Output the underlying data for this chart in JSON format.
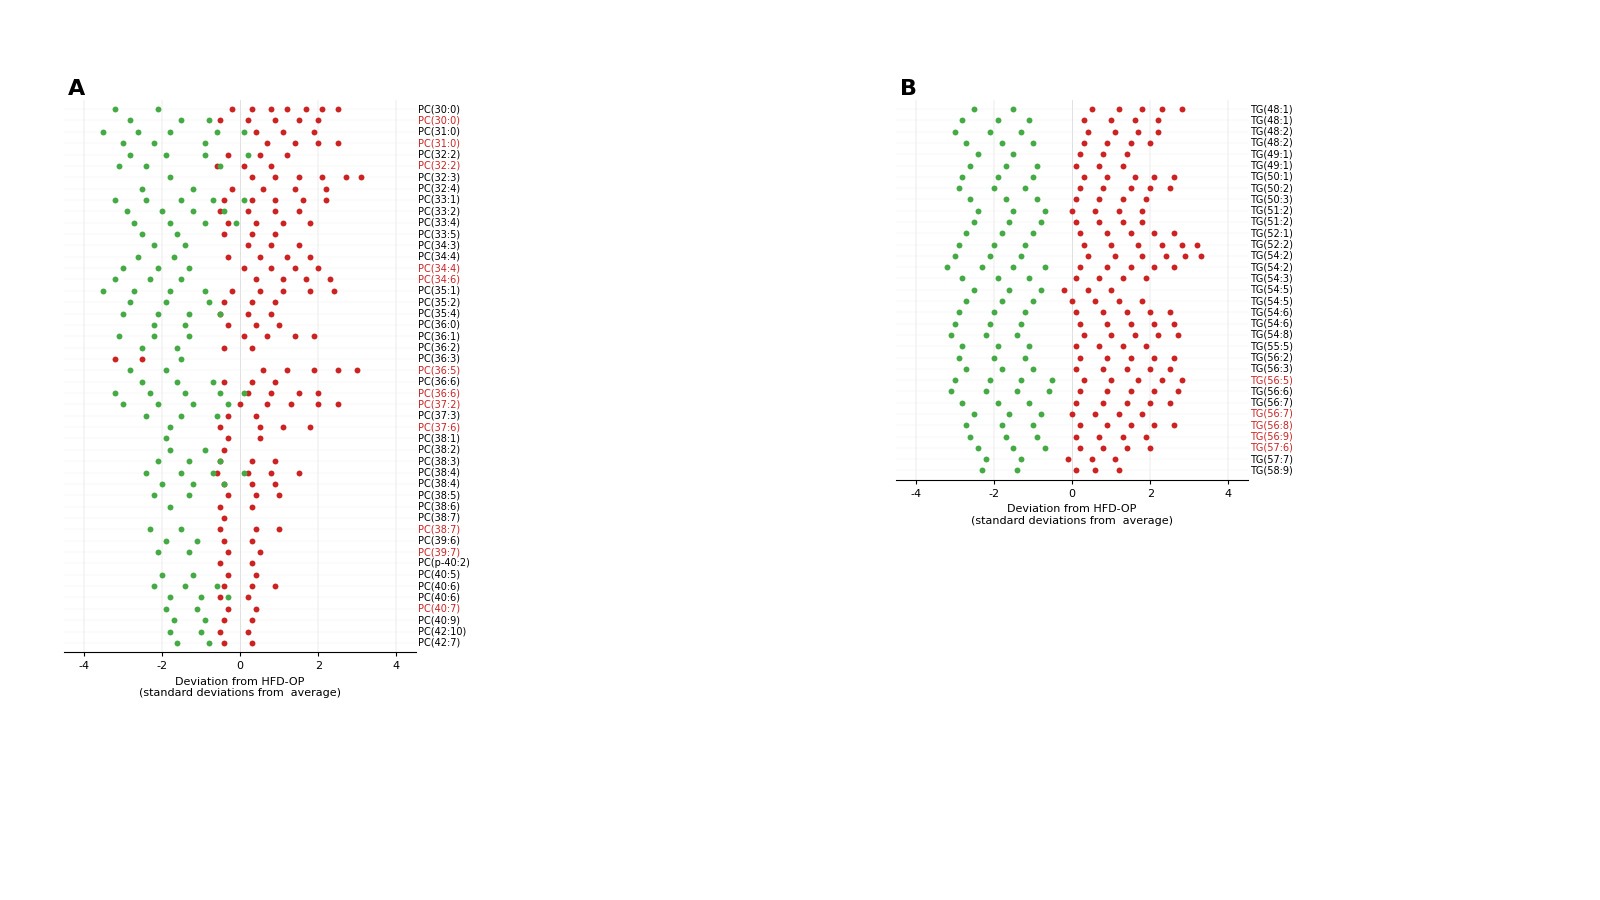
{
  "panel_A_label": "A",
  "panel_B_label": "B",
  "pc_labels": [
    "PC(30:0)",
    "PC(30:0)",
    "PC(31:0)",
    "PC(31:0)",
    "PC(32:2)",
    "PC(32:2)",
    "PC(32:3)",
    "PC(32:4)",
    "PC(33:1)",
    "PC(33:2)",
    "PC(33:4)",
    "PC(33:5)",
    "PC(34:3)",
    "PC(34:4)",
    "PC(34:4)",
    "PC(34:6)",
    "PC(35:1)",
    "PC(35:2)",
    "PC(35:4)",
    "PC(36:0)",
    "PC(36:1)",
    "PC(36:2)",
    "PC(36:3)",
    "PC(36:5)",
    "PC(36:6)",
    "PC(36:6)",
    "PC(37:2)",
    "PC(37:3)",
    "PC(37:6)",
    "PC(38:1)",
    "PC(38:2)",
    "PC(38:3)",
    "PC(38:4)",
    "PC(38:4)",
    "PC(38:5)",
    "PC(38:6)",
    "PC(38:7)",
    "PC(38:7)",
    "PC(39:6)",
    "PC(39:7)",
    "PC(p-40:2)",
    "PC(40:5)",
    "PC(40:6)",
    "PC(40:6)",
    "PC(40:7)",
    "PC(40:9)",
    "PC(42:10)",
    "PC(42:7)"
  ],
  "pc_label_red": [
    false,
    true,
    false,
    true,
    false,
    true,
    false,
    false,
    false,
    false,
    false,
    false,
    false,
    false,
    true,
    true,
    false,
    false,
    false,
    false,
    false,
    false,
    false,
    true,
    false,
    true,
    true,
    false,
    true,
    false,
    false,
    false,
    false,
    false,
    false,
    false,
    false,
    true,
    false,
    true,
    false,
    false,
    false,
    false,
    true,
    false,
    false,
    false
  ],
  "pc_rows": [
    {
      "r": [
        -0.2,
        0.3,
        0.8,
        1.2,
        1.7,
        2.1,
        2.5
      ],
      "g": [
        -3.2,
        -2.1
      ]
    },
    {
      "r": [
        -0.5,
        0.2,
        0.9,
        1.5,
        2.0
      ],
      "g": [
        -2.8,
        -1.5,
        -0.8
      ]
    },
    {
      "r": [
        0.4,
        1.1,
        1.9
      ],
      "g": [
        -3.5,
        -2.6,
        -1.8,
        -0.6,
        0.1
      ]
    },
    {
      "r": [
        0.7,
        1.4,
        2.0,
        2.5
      ],
      "g": [
        -3.0,
        -2.2,
        -0.9
      ]
    },
    {
      "r": [
        -0.3,
        0.5,
        1.2
      ],
      "g": [
        -2.8,
        -1.9,
        -0.9,
        0.2
      ]
    },
    {
      "r": [
        -0.6,
        0.1,
        0.8
      ],
      "g": [
        -3.1,
        -2.4,
        -0.5
      ]
    },
    {
      "r": [
        0.3,
        0.9,
        1.5,
        2.1,
        2.7,
        3.1
      ],
      "g": [
        -1.8
      ]
    },
    {
      "r": [
        -0.2,
        0.6,
        1.4,
        2.2
      ],
      "g": [
        -2.5,
        -1.2
      ]
    },
    {
      "r": [
        -0.4,
        0.3,
        0.9,
        1.6,
        2.2
      ],
      "g": [
        -3.2,
        -2.4,
        -1.5,
        -0.7,
        0.1
      ]
    },
    {
      "r": [
        -0.5,
        0.2,
        0.9,
        1.5
      ],
      "g": [
        -2.9,
        -2.0,
        -1.2,
        -0.4
      ]
    },
    {
      "r": [
        -0.3,
        0.4,
        1.1,
        1.8
      ],
      "g": [
        -2.7,
        -1.8,
        -0.9,
        -0.1
      ]
    },
    {
      "r": [
        -0.4,
        0.3,
        0.9
      ],
      "g": [
        -2.5,
        -1.6
      ]
    },
    {
      "r": [
        0.2,
        0.8,
        1.5
      ],
      "g": [
        -2.2,
        -1.4
      ]
    },
    {
      "r": [
        -0.3,
        0.5,
        1.2,
        1.8
      ],
      "g": [
        -2.6,
        -1.7
      ]
    },
    {
      "r": [
        0.1,
        0.8,
        1.4,
        2.0
      ],
      "g": [
        -3.0,
        -2.1,
        -1.3
      ]
    },
    {
      "r": [
        0.4,
        1.1,
        1.7,
        2.3
      ],
      "g": [
        -3.2,
        -2.3,
        -1.5
      ]
    },
    {
      "r": [
        -0.2,
        0.5,
        1.1,
        1.8,
        2.4
      ],
      "g": [
        -3.5,
        -2.7,
        -1.8,
        -0.9
      ]
    },
    {
      "r": [
        -0.4,
        0.3,
        0.9
      ],
      "g": [
        -2.8,
        -1.9,
        -0.8
      ]
    },
    {
      "r": [
        -0.5,
        0.2,
        0.8
      ],
      "g": [
        -3.0,
        -2.1,
        -1.3,
        -0.5
      ]
    },
    {
      "r": [
        -0.3,
        0.4,
        1.0
      ],
      "g": [
        -2.2,
        -1.4
      ]
    },
    {
      "r": [
        0.1,
        0.7,
        1.4,
        1.9
      ],
      "g": [
        -3.1,
        -2.2,
        -1.3
      ]
    },
    {
      "r": [
        -0.4,
        0.3
      ],
      "g": [
        -2.5,
        -1.6
      ]
    },
    {
      "r": [
        -3.2,
        -2.5
      ],
      "g": [
        -1.5
      ]
    },
    {
      "r": [
        0.6,
        1.2,
        1.9,
        2.5,
        3.0
      ],
      "g": [
        -2.8,
        -1.9
      ]
    },
    {
      "r": [
        -0.4,
        0.3,
        0.9
      ],
      "g": [
        -2.5,
        -1.6,
        -0.7
      ]
    },
    {
      "r": [
        0.2,
        0.8,
        1.5,
        2.0
      ],
      "g": [
        -3.2,
        -2.3,
        -1.4,
        -0.5,
        0.1
      ]
    },
    {
      "r": [
        0.0,
        0.7,
        1.3,
        2.0,
        2.5
      ],
      "g": [
        -3.0,
        -2.1,
        -1.2,
        -0.3
      ]
    },
    {
      "r": [
        -0.3,
        0.4
      ],
      "g": [
        -2.4,
        -1.5,
        -0.6
      ]
    },
    {
      "r": [
        -0.5,
        0.5,
        1.1,
        1.8
      ],
      "g": [
        -1.8
      ]
    },
    {
      "r": [
        -0.3,
        0.5
      ],
      "g": [
        -1.9
      ]
    },
    {
      "r": [
        -0.4
      ],
      "g": [
        -1.8,
        -0.9
      ]
    },
    {
      "r": [
        -0.5,
        0.3,
        0.9
      ],
      "g": [
        -2.1,
        -1.3,
        -0.5
      ]
    },
    {
      "r": [
        -0.6,
        0.2,
        0.8,
        1.5
      ],
      "g": [
        -2.4,
        -1.5,
        -0.7,
        0.1
      ]
    },
    {
      "r": [
        -0.4,
        0.3,
        0.9
      ],
      "g": [
        -2.0,
        -1.2,
        -0.4
      ]
    },
    {
      "r": [
        -0.3,
        0.4,
        1.0
      ],
      "g": [
        -2.2,
        -1.3
      ]
    },
    {
      "r": [
        -0.5,
        0.3
      ],
      "g": [
        -1.8
      ]
    },
    {
      "r": [
        -0.4
      ],
      "g": []
    },
    {
      "r": [
        -0.5,
        0.4,
        1.0
      ],
      "g": [
        -2.3,
        -1.5
      ]
    },
    {
      "r": [
        -0.4,
        0.3
      ],
      "g": [
        -1.9,
        -1.1
      ]
    },
    {
      "r": [
        -0.3,
        0.5
      ],
      "g": [
        -2.1,
        -1.3
      ]
    },
    {
      "r": [
        -0.5,
        0.3
      ],
      "g": []
    },
    {
      "r": [
        -0.3,
        0.4
      ],
      "g": [
        -2.0,
        -1.2
      ]
    },
    {
      "r": [
        -0.4,
        0.3,
        0.9
      ],
      "g": [
        -2.2,
        -1.4,
        -0.6
      ]
    },
    {
      "r": [
        -0.5,
        0.2
      ],
      "g": [
        -1.8,
        -1.0,
        -0.3
      ]
    },
    {
      "r": [
        -0.3,
        0.4
      ],
      "g": [
        -1.9,
        -1.1
      ]
    },
    {
      "r": [
        -0.4,
        0.3
      ],
      "g": [
        -1.7,
        -0.9
      ]
    },
    {
      "r": [
        -0.5,
        0.2
      ],
      "g": [
        -1.8,
        -1.0
      ]
    },
    {
      "r": [
        -0.4,
        0.3
      ],
      "g": [
        -1.6,
        -0.8
      ]
    }
  ],
  "tg_labels": [
    "TG(48:1)",
    "TG(48:1)",
    "TG(48:2)",
    "TG(48:2)",
    "TG(49:1)",
    "TG(49:1)",
    "TG(50:1)",
    "TG(50:2)",
    "TG(50:3)",
    "TG(51:2)",
    "TG(51:2)",
    "TG(52:1)",
    "TG(52:2)",
    "TG(54:2)",
    "TG(54:2)",
    "TG(54:3)",
    "TG(54:5)",
    "TG(54:5)",
    "TG(54:6)",
    "TG(54:6)",
    "TG(54:8)",
    "TG(55:5)",
    "TG(56:2)",
    "TG(56:3)",
    "TG(56:5)",
    "TG(56:6)",
    "TG(56:7)",
    "TG(56:7)",
    "TG(56:8)",
    "TG(56:9)",
    "TG(57:6)",
    "TG(57:7)",
    "TG(58:9)"
  ],
  "tg_label_red": [
    false,
    false,
    false,
    false,
    false,
    false,
    false,
    false,
    false,
    false,
    false,
    false,
    false,
    false,
    false,
    false,
    false,
    false,
    false,
    false,
    false,
    false,
    false,
    false,
    true,
    false,
    false,
    true,
    true,
    true,
    true,
    false,
    false
  ],
  "tg_rows": [
    {
      "r": [
        0.5,
        1.2,
        1.8,
        2.3,
        2.8
      ],
      "g": [
        -2.5,
        -1.5
      ]
    },
    {
      "r": [
        0.3,
        1.0,
        1.6,
        2.2
      ],
      "g": [
        -2.8,
        -1.9,
        -1.1
      ]
    },
    {
      "r": [
        0.4,
        1.1,
        1.7,
        2.2
      ],
      "g": [
        -3.0,
        -2.1,
        -1.3
      ]
    },
    {
      "r": [
        0.3,
        0.9,
        1.5,
        2.0
      ],
      "g": [
        -2.7,
        -1.8,
        -1.0
      ]
    },
    {
      "r": [
        0.2,
        0.8,
        1.4
      ],
      "g": [
        -2.4,
        -1.5
      ]
    },
    {
      "r": [
        0.1,
        0.7,
        1.3
      ],
      "g": [
        -2.6,
        -1.7,
        -0.9
      ]
    },
    {
      "r": [
        0.3,
        0.9,
        1.6,
        2.1,
        2.6
      ],
      "g": [
        -2.8,
        -1.9,
        -1.0
      ]
    },
    {
      "r": [
        0.2,
        0.8,
        1.5,
        2.0,
        2.5
      ],
      "g": [
        -2.9,
        -2.0,
        -1.2
      ]
    },
    {
      "r": [
        0.1,
        0.7,
        1.3,
        1.9
      ],
      "g": [
        -2.6,
        -1.7,
        -0.9
      ]
    },
    {
      "r": [
        0.0,
        0.6,
        1.2,
        1.8
      ],
      "g": [
        -2.4,
        -1.5,
        -0.7
      ]
    },
    {
      "r": [
        0.1,
        0.7,
        1.3,
        1.8
      ],
      "g": [
        -2.5,
        -1.6,
        -0.8
      ]
    },
    {
      "r": [
        0.2,
        0.9,
        1.5,
        2.1,
        2.6
      ],
      "g": [
        -2.7,
        -1.8,
        -1.0
      ]
    },
    {
      "r": [
        0.3,
        1.0,
        1.7,
        2.3,
        2.8,
        3.2
      ],
      "g": [
        -2.9,
        -2.0,
        -1.2
      ]
    },
    {
      "r": [
        0.4,
        1.1,
        1.8,
        2.4,
        2.9,
        3.3
      ],
      "g": [
        -3.0,
        -2.1,
        -1.3
      ]
    },
    {
      "r": [
        0.2,
        0.9,
        1.5,
        2.1,
        2.6
      ],
      "g": [
        -3.2,
        -2.3,
        -1.5,
        -0.7
      ]
    },
    {
      "r": [
        0.1,
        0.7,
        1.3,
        1.9
      ],
      "g": [
        -2.8,
        -1.9,
        -1.1
      ]
    },
    {
      "r": [
        -0.2,
        0.4,
        1.0
      ],
      "g": [
        -2.5,
        -1.6,
        -0.8
      ]
    },
    {
      "r": [
        0.0,
        0.6,
        1.2,
        1.8
      ],
      "g": [
        -2.7,
        -1.8,
        -1.0
      ]
    },
    {
      "r": [
        0.1,
        0.8,
        1.4,
        2.0,
        2.5
      ],
      "g": [
        -2.9,
        -2.0,
        -1.2
      ]
    },
    {
      "r": [
        0.2,
        0.9,
        1.5,
        2.1,
        2.6
      ],
      "g": [
        -3.0,
        -2.1,
        -1.3
      ]
    },
    {
      "r": [
        0.3,
        1.0,
        1.6,
        2.2,
        2.7
      ],
      "g": [
        -3.1,
        -2.2,
        -1.4
      ]
    },
    {
      "r": [
        0.1,
        0.7,
        1.3,
        1.9
      ],
      "g": [
        -2.8,
        -1.9,
        -1.1
      ]
    },
    {
      "r": [
        0.2,
        0.9,
        1.5,
        2.1,
        2.6
      ],
      "g": [
        -2.9,
        -2.0,
        -1.2
      ]
    },
    {
      "r": [
        0.1,
        0.8,
        1.4,
        2.0,
        2.5
      ],
      "g": [
        -2.7,
        -1.8,
        -1.0
      ]
    },
    {
      "r": [
        0.3,
        1.0,
        1.7,
        2.3,
        2.8
      ],
      "g": [
        -3.0,
        -2.1,
        -1.3,
        -0.5
      ]
    },
    {
      "r": [
        0.2,
        0.9,
        1.5,
        2.1,
        2.7
      ],
      "g": [
        -3.1,
        -2.2,
        -1.4,
        -0.6
      ]
    },
    {
      "r": [
        0.1,
        0.8,
        1.4,
        2.0,
        2.5
      ],
      "g": [
        -2.8,
        -1.9,
        -1.1
      ]
    },
    {
      "r": [
        0.0,
        0.6,
        1.2,
        1.8
      ],
      "g": [
        -2.5,
        -1.6,
        -0.8
      ]
    },
    {
      "r": [
        0.2,
        0.9,
        1.5,
        2.1,
        2.6
      ],
      "g": [
        -2.7,
        -1.8,
        -1.0
      ]
    },
    {
      "r": [
        0.1,
        0.7,
        1.3,
        1.9
      ],
      "g": [
        -2.6,
        -1.7,
        -0.9
      ]
    },
    {
      "r": [
        0.2,
        0.8,
        1.4,
        2.0
      ],
      "g": [
        -2.4,
        -1.5,
        -0.7
      ]
    },
    {
      "r": [
        -0.1,
        0.5,
        1.1
      ],
      "g": [
        -2.2,
        -1.3
      ]
    },
    {
      "r": [
        0.1,
        0.6,
        1.2
      ],
      "g": [
        -2.3,
        -1.4
      ]
    }
  ],
  "xmin": -4,
  "xmax": 4,
  "xticks": [
    -4,
    -2,
    0,
    2,
    4
  ],
  "dot_color_red": "#cc2222",
  "dot_color_green": "#44aa44",
  "xlabel": "Deviation from HFD-OP\n(standard deviations from  average)"
}
